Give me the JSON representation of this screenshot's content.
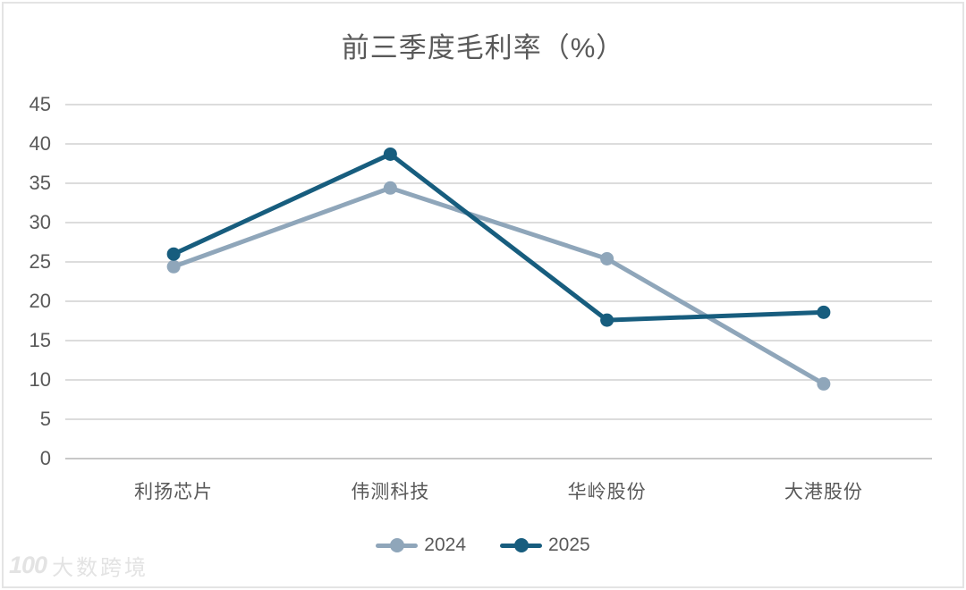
{
  "panel": {
    "background": "#ffffff",
    "frame_border_color": "#e4e4e4"
  },
  "chart_data": {
    "type": "line",
    "title": "前三季度毛利率（%）",
    "categories": [
      "利扬芯片",
      "伟测科技",
      "华岭股份",
      "大港股份"
    ],
    "series": [
      {
        "name": "2024",
        "color": "#8fa6ba",
        "values": [
          24.4,
          34.4,
          25.4,
          9.5
        ]
      },
      {
        "name": "2025",
        "color": "#175d7e",
        "values": [
          26.0,
          38.7,
          17.6,
          18.6
        ]
      }
    ],
    "xlabel": "",
    "ylabel": "",
    "ylim": [
      0,
      45
    ],
    "yticks": [
      45,
      40,
      35,
      30,
      25,
      20,
      15,
      10,
      5,
      0
    ],
    "grid": true,
    "legend_position": "bottom",
    "marker": "circle"
  },
  "colors": {
    "title_text": "#595959",
    "axis_text": "#595959",
    "gridline": "#dcdcdc",
    "baseline": "#c8c8c8"
  },
  "watermark": {
    "logo": "100",
    "text": "大数跨境"
  }
}
